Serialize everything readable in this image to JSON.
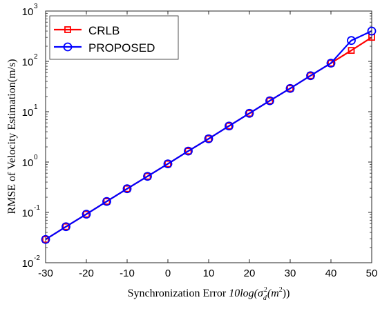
{
  "chart_data": {
    "type": "line",
    "title": "",
    "xlabel_prefix": "Synchronization Error ",
    "xlabel_func": "10log(",
    "xlabel_sigma": "σ",
    "xlabel_sup": "2",
    "xlabel_sub": "d",
    "xlabel_rest": "(m",
    "xlabel_sup2": "2",
    "xlabel_close": "))",
    "ylabel": "RMSE of Velocity Estimation(m/s)",
    "xlim": [
      -30,
      50
    ],
    "ylim": [
      0.01,
      1000
    ],
    "yscale": "log",
    "grid": false,
    "legend_position": "top-left",
    "x_ticks": [
      -30,
      -20,
      -10,
      0,
      10,
      20,
      30,
      40,
      50
    ],
    "x_tick_labels": [
      "-30",
      "-20",
      "-10",
      "0",
      "10",
      "20",
      "30",
      "40",
      "50"
    ],
    "y_ticks": [
      {
        "value": 0.01,
        "base": "10",
        "exp": "-2"
      },
      {
        "value": 0.1,
        "base": "10",
        "exp": "-1"
      },
      {
        "value": 1,
        "base": "10",
        "exp": "0"
      },
      {
        "value": 10,
        "base": "10",
        "exp": "1"
      },
      {
        "value": 100,
        "base": "10",
        "exp": "2"
      },
      {
        "value": 1000,
        "base": "10",
        "exp": "3"
      }
    ],
    "x": [
      -30,
      -25,
      -20,
      -15,
      -10,
      -5,
      0,
      5,
      10,
      15,
      20,
      25,
      30,
      35,
      40,
      45,
      50
    ],
    "series": [
      {
        "name": "CRLB",
        "color": "#ff0000",
        "marker": "square",
        "values": [
          0.029,
          0.052,
          0.092,
          0.165,
          0.295,
          0.52,
          0.92,
          1.65,
          2.9,
          5.2,
          9.3,
          16.5,
          29,
          52,
          92,
          165,
          300
        ]
      },
      {
        "name": "PROPOSED",
        "color": "#0000ff",
        "marker": "circle",
        "values": [
          0.029,
          0.052,
          0.092,
          0.165,
          0.295,
          0.52,
          0.92,
          1.65,
          2.9,
          5.2,
          9.3,
          16.5,
          29,
          52,
          92,
          260,
          400
        ]
      }
    ]
  }
}
